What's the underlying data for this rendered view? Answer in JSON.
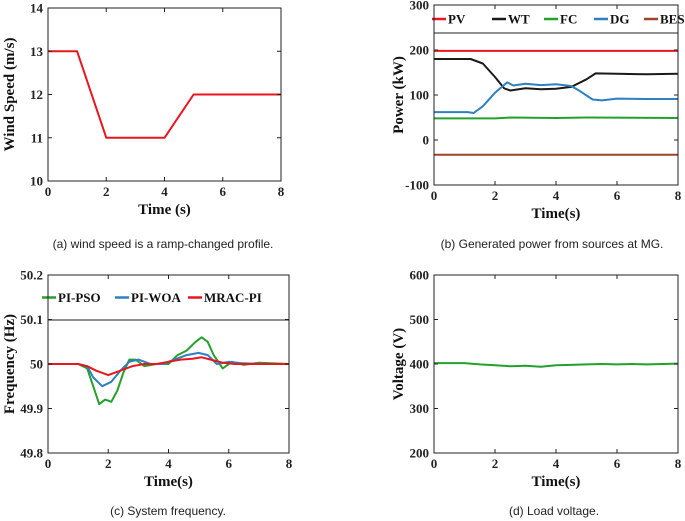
{
  "chart_data": [
    {
      "id": "a",
      "type": "line",
      "caption": "(a) wind speed is a ramp-changed profile.",
      "xlabel": "Time (s)",
      "ylabel": "Wind Speed (m/s)",
      "xlim": [
        0,
        8
      ],
      "ylim": [
        10,
        14
      ],
      "xticks": [
        0,
        2,
        4,
        6,
        8
      ],
      "yticks": [
        10,
        11,
        12,
        13,
        14
      ],
      "grid": false,
      "legend": null,
      "series": [
        {
          "name": "Wind speed",
          "color": "#e8161e",
          "x": [
            0,
            1,
            2,
            4,
            5,
            8
          ],
          "y": [
            13,
            13,
            11,
            11,
            12,
            12
          ]
        }
      ]
    },
    {
      "id": "b",
      "type": "line",
      "caption": "(b) Generated power from sources at MG.",
      "xlabel": "Time(s)",
      "ylabel": "Power (kW)",
      "xlim": [
        0,
        8
      ],
      "ylim": [
        -100,
        300
      ],
      "xticks": [
        0,
        2,
        4,
        6,
        8
      ],
      "yticks": [
        -100,
        0,
        100,
        200,
        300
      ],
      "grid": false,
      "legend": "top",
      "series": [
        {
          "name": "PV",
          "color": "#e8161e",
          "x": [
            0,
            8
          ],
          "y": [
            198,
            198
          ]
        },
        {
          "name": "WT",
          "color": "#1a1a1a",
          "x": [
            0,
            1.2,
            1.6,
            2.0,
            2.3,
            2.5,
            3.0,
            3.5,
            4.0,
            4.5,
            5.0,
            5.3,
            6.0,
            7.0,
            8.0
          ],
          "y": [
            180,
            180,
            170,
            140,
            115,
            110,
            115,
            113,
            114,
            118,
            135,
            148,
            147,
            146,
            147
          ]
        },
        {
          "name": "FC",
          "color": "#24a12a",
          "x": [
            0,
            2,
            2.5,
            4,
            5,
            8
          ],
          "y": [
            48,
            48,
            50,
            49,
            50,
            49
          ]
        },
        {
          "name": "DG",
          "color": "#2f7fc1",
          "x": [
            0,
            1.1,
            1.3,
            1.6,
            2.0,
            2.4,
            2.6,
            3.0,
            3.5,
            4.0,
            4.5,
            4.8,
            5.2,
            5.5,
            6.0,
            7.0,
            8.0
          ],
          "y": [
            62,
            62,
            60,
            75,
            105,
            128,
            121,
            125,
            122,
            124,
            120,
            108,
            90,
            88,
            92,
            91,
            91
          ]
        },
        {
          "name": "BESS",
          "color": "#a0412c",
          "x": [
            0,
            8
          ],
          "y": [
            -33,
            -33
          ]
        }
      ]
    },
    {
      "id": "c",
      "type": "line",
      "caption": "(c) System frequency.",
      "xlabel": "Time(s)",
      "ylabel": "Frequency (Hz)",
      "xlim": [
        0,
        8
      ],
      "ylim": [
        49.8,
        50.2
      ],
      "xticks": [
        0,
        2,
        4,
        6,
        8
      ],
      "yticks": [
        49.8,
        49.9,
        50,
        50.1,
        50.2
      ],
      "ytick_labels": [
        "49.8",
        "49.9",
        "50",
        "50.1",
        "50.2"
      ],
      "grid": false,
      "legend": "top",
      "series": [
        {
          "name": "PI-PSO",
          "color": "#24a12a",
          "x": [
            0,
            1.0,
            1.3,
            1.5,
            1.7,
            1.9,
            2.1,
            2.3,
            2.5,
            2.7,
            2.9,
            3.2,
            3.6,
            4.0,
            4.3,
            4.6,
            4.9,
            5.1,
            5.3,
            5.5,
            5.8,
            6.1,
            6.5,
            7.0,
            8.0
          ],
          "y": [
            50,
            50,
            49.99,
            49.95,
            49.91,
            49.92,
            49.915,
            49.94,
            49.98,
            50.01,
            50.01,
            49.995,
            50.0,
            50.0,
            50.02,
            50.03,
            50.05,
            50.06,
            50.05,
            50.02,
            49.99,
            50.005,
            49.998,
            50.003,
            50.0
          ]
        },
        {
          "name": "PI-WOA",
          "color": "#2f7fc1",
          "x": [
            0,
            1.0,
            1.3,
            1.5,
            1.8,
            2.1,
            2.4,
            2.7,
            3.0,
            3.4,
            3.8,
            4.2,
            4.6,
            5.0,
            5.3,
            5.6,
            6.0,
            6.4,
            7.0,
            8.0
          ],
          "y": [
            50,
            50,
            49.995,
            49.97,
            49.95,
            49.96,
            49.985,
            50.005,
            50.01,
            50.0,
            50.0,
            50.01,
            50.02,
            50.025,
            50.02,
            50.0,
            50.005,
            50.002,
            50.0,
            50.0
          ]
        },
        {
          "name": "MRAC-PI",
          "color": "#e8161e",
          "x": [
            0,
            1.0,
            1.3,
            1.6,
            2.0,
            2.4,
            2.8,
            3.2,
            3.6,
            4.0,
            4.4,
            4.8,
            5.1,
            5.4,
            5.8,
            6.2,
            7.0,
            8.0
          ],
          "y": [
            50,
            50,
            49.995,
            49.985,
            49.975,
            49.985,
            49.995,
            50.0,
            50.0,
            50.005,
            50.01,
            50.012,
            50.015,
            50.01,
            50.003,
            50.0,
            50.0,
            50.0
          ]
        }
      ]
    },
    {
      "id": "d",
      "type": "line",
      "caption": "(d) Load voltage.",
      "xlabel": "Time(s)",
      "ylabel": "Voltage (V)",
      "xlim": [
        0,
        8
      ],
      "ylim": [
        200,
        600
      ],
      "xticks": [
        0,
        2,
        4,
        6,
        8
      ],
      "yticks": [
        200,
        300,
        400,
        500,
        600
      ],
      "grid": false,
      "legend": null,
      "series": [
        {
          "name": "Load voltage",
          "color": "#24a12a",
          "x": [
            0,
            1.0,
            1.5,
            2.0,
            2.5,
            3.0,
            3.5,
            4.0,
            4.5,
            5.0,
            5.5,
            6.0,
            6.5,
            7.0,
            7.5,
            8.0
          ],
          "y": [
            402,
            402,
            399,
            397,
            395,
            396,
            394,
            397,
            398,
            399,
            400,
            399,
            400,
            399,
            400,
            401
          ]
        }
      ]
    }
  ]
}
